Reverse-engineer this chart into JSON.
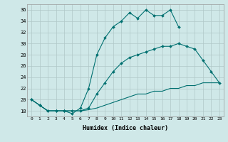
{
  "xlabel": "Humidex (Indice chaleur)",
  "ylabel": "",
  "xlim": [
    -0.5,
    23.5
  ],
  "ylim": [
    17,
    37
  ],
  "yticks": [
    18,
    20,
    22,
    24,
    26,
    28,
    30,
    32,
    34,
    36
  ],
  "xticks": [
    0,
    1,
    2,
    3,
    4,
    5,
    6,
    7,
    8,
    9,
    10,
    11,
    12,
    13,
    14,
    15,
    16,
    17,
    18,
    19,
    20,
    21,
    22,
    23
  ],
  "background_color": "#cfe8e8",
  "grid_color": "#b0c8c8",
  "line_color": "#007070",
  "lines": [
    {
      "x": [
        0,
        1,
        2,
        3,
        4,
        5,
        6,
        7,
        8,
        9,
        10,
        11,
        12,
        13,
        14,
        15,
        16,
        17,
        18
      ],
      "y": [
        20,
        19,
        18,
        18,
        18,
        17.5,
        18.5,
        22,
        28,
        31,
        33,
        34,
        35.5,
        34.5,
        36,
        35,
        35,
        36,
        33
      ],
      "has_markers": true
    },
    {
      "x": [
        0,
        1,
        2,
        3,
        4,
        5,
        6,
        7,
        8,
        9,
        10,
        11,
        12,
        13,
        14,
        15,
        16,
        17,
        18,
        19,
        20,
        21,
        22,
        23
      ],
      "y": [
        20,
        19,
        18,
        18,
        18,
        18,
        18,
        18.5,
        21,
        23,
        25,
        26.5,
        27.5,
        28,
        28.5,
        29,
        29.5,
        29.5,
        30,
        29.5,
        29,
        27,
        25,
        23
      ],
      "has_markers": true
    },
    {
      "x": [
        0,
        1,
        2,
        3,
        4,
        5,
        6,
        7,
        8,
        9,
        10,
        11,
        12,
        13,
        14,
        15,
        16,
        17,
        18,
        19,
        20,
        21,
        22,
        23
      ],
      "y": [
        20,
        19,
        18,
        18,
        18,
        18,
        18,
        18.2,
        18.5,
        19,
        19.5,
        20,
        20.5,
        21,
        21,
        21.5,
        21.5,
        22,
        22,
        22.5,
        22.5,
        23,
        23,
        23
      ],
      "has_markers": false
    }
  ]
}
